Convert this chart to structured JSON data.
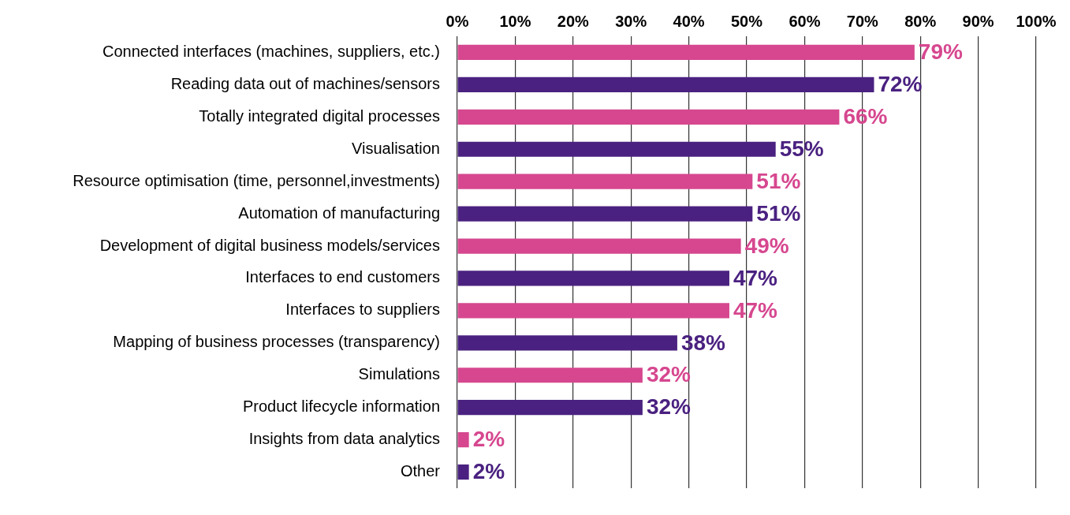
{
  "chart_data": {
    "type": "bar",
    "orientation": "horizontal",
    "categories": [
      "Connected interfaces (machines, suppliers, etc.)",
      "Reading data out of machines/sensors",
      "Totally integrated digital processes",
      "Visualisation",
      "Resource optimisation (time, personnel,investments)",
      "Automation of manufacturing",
      "Development of digital business models/services",
      "Interfaces to end customers",
      "Interfaces to suppliers",
      "Mapping of business processes (transparency)",
      "Simulations",
      "Product lifecycle information",
      "Insights from data analytics",
      "Other"
    ],
    "values": [
      79,
      72,
      66,
      55,
      51,
      51,
      49,
      47,
      47,
      38,
      32,
      32,
      2,
      2
    ],
    "colors": [
      "#d6478f",
      "#4a2180",
      "#d6478f",
      "#4a2180",
      "#d6478f",
      "#4a2180",
      "#d6478f",
      "#4a2180",
      "#d6478f",
      "#4a2180",
      "#d6478f",
      "#4a2180",
      "#d6478f",
      "#4a2180"
    ],
    "value_labels": [
      "79%",
      "72%",
      "66%",
      "55%",
      "51%",
      "51%",
      "49%",
      "47%",
      "47%",
      "38%",
      "32%",
      "32%",
      "2%",
      "2%"
    ],
    "xlim": [
      0,
      100
    ],
    "xticks": [
      {
        "value": 0,
        "label": "0%"
      },
      {
        "value": 10,
        "label": "10%"
      },
      {
        "value": 20,
        "label": "20%"
      },
      {
        "value": 30,
        "label": "30%"
      },
      {
        "value": 40,
        "label": "40%"
      },
      {
        "value": 50,
        "label": "50%"
      },
      {
        "value": 60,
        "label": "60%"
      },
      {
        "value": 70,
        "label": "70%"
      },
      {
        "value": 80,
        "label": "80%"
      },
      {
        "value": 90,
        "label": "90%"
      },
      {
        "value": 100,
        "label": "100%"
      }
    ],
    "grid": "x"
  }
}
